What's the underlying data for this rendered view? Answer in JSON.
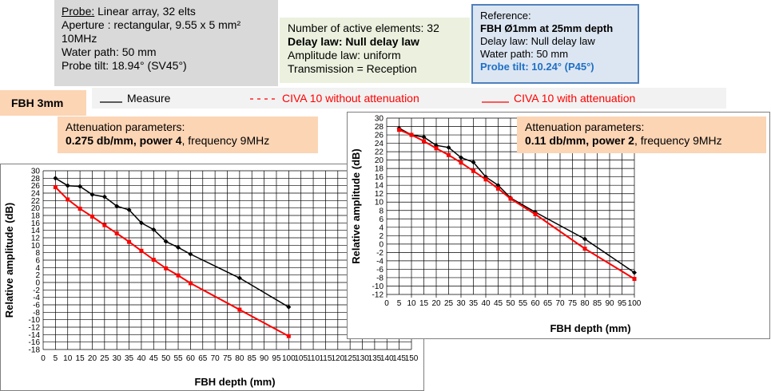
{
  "probe": {
    "label": "Probe:",
    "type_value": " Linear array, 32 elts",
    "aperture": "Aperture : rectangular, 9.55 x 5 mm²",
    "frequency": "10MHz",
    "water_path": "Water path: 50 mm",
    "tilt": "Probe tilt: 18.94° (SV45°)"
  },
  "elements": {
    "count": "Number of active elements: 32",
    "delay_law": "Delay law: Null delay law",
    "amplitude_law": "Amplitude law: uniform",
    "transmission": "Transmission = Reception"
  },
  "reference": {
    "title": "Reference:",
    "target": "FBH Ø1mm at 25mm depth",
    "delay_law": "Delay law: Null delay law",
    "water_path": "Water path: 50 mm",
    "tilt": "Probe tilt: 10.24° (P45°)"
  },
  "fbh_label": "FBH 3mm",
  "legend": {
    "measure": "Measure",
    "civa_without": "CIVA 10 without attenuation",
    "civa_with": "CIVA 10 with attenuation"
  },
  "attenuation_left": {
    "label": "Attenuation parameters:",
    "values": "0.275 db/mm, power 4",
    "frequency": ", frequency 9MHz"
  },
  "attenuation_right": {
    "label": "Attenuation parameters:",
    "values": "0.11 db/mm, power 2",
    "frequency": ", frequency 9MHz"
  },
  "colors": {
    "measure": "#000000",
    "civa": "#ff0000"
  },
  "chart_data": [
    {
      "type": "line",
      "xlabel": "FBH depth (mm)",
      "ylabel": "Relative amplitude (dB)",
      "xlim": [
        0,
        150
      ],
      "ylim": [
        -18,
        30
      ],
      "xstep": 5,
      "ystep": 2,
      "grid": true,
      "series": [
        {
          "name": "Measure",
          "marker": "diamond",
          "color": "#000000",
          "x": [
            5,
            10,
            15,
            20,
            25,
            30,
            35,
            40,
            45,
            50,
            55,
            60,
            80,
            100
          ],
          "y": [
            28,
            26,
            25.8,
            23.6,
            23,
            20.5,
            19.5,
            16,
            14.2,
            11,
            9.4,
            7.6,
            1.2,
            -6.6
          ]
        },
        {
          "name": "CIVA 10 with attenuation",
          "marker": "square",
          "color": "#ff0000",
          "x": [
            5,
            10,
            15,
            20,
            25,
            30,
            35,
            40,
            45,
            50,
            55,
            60,
            80,
            100
          ],
          "y": [
            25.6,
            22.3,
            19.8,
            17.7,
            15.4,
            13.2,
            10.9,
            8.5,
            6.1,
            3.8,
            1.9,
            -0.2,
            -7.3,
            -14.4
          ]
        }
      ]
    },
    {
      "type": "line",
      "xlabel": "FBH depth (mm)",
      "ylabel": "Relative amplitude (dB)",
      "xlim": [
        0,
        100
      ],
      "ylim": [
        -12,
        30
      ],
      "xstep": 5,
      "ystep": 2,
      "grid": true,
      "series": [
        {
          "name": "Measure",
          "marker": "diamond",
          "color": "#000000",
          "x": [
            5,
            10,
            15,
            20,
            25,
            30,
            35,
            40,
            45,
            50,
            60,
            80,
            100
          ],
          "y": [
            27.6,
            26,
            25.5,
            23.5,
            23,
            20.6,
            19.5,
            16,
            14,
            11,
            7.6,
            1.2,
            -6.8
          ]
        },
        {
          "name": "CIVA 10 with attenuation",
          "marker": "square",
          "color": "#ff0000",
          "x": [
            5,
            10,
            15,
            20,
            25,
            30,
            35,
            40,
            45,
            50,
            60,
            80,
            100
          ],
          "y": [
            27.2,
            26,
            24.5,
            22.8,
            21.2,
            19.4,
            17.4,
            15.4,
            13.2,
            10.8,
            7.1,
            -1.1,
            -8.3
          ]
        }
      ]
    }
  ]
}
